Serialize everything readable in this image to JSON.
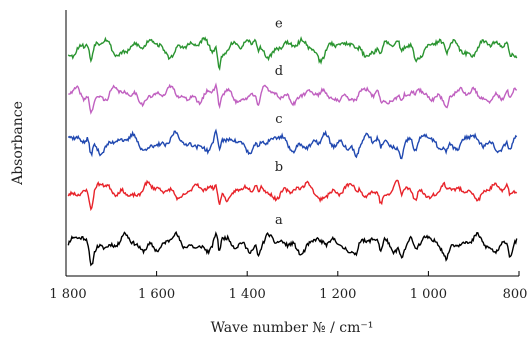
{
  "chart_data": {
    "type": "line",
    "title": "",
    "xlabel": "Wave number № / cm⁻¹",
    "ylabel": "Absorbance",
    "x_reversed": true,
    "xlim": [
      1800,
      800
    ],
    "x_ticks": [
      1800,
      1600,
      1400,
      1200,
      1000,
      800
    ],
    "x_tick_labels": [
      "1 800",
      "1 600",
      "1 400",
      "1 200",
      "1 000",
      "800"
    ],
    "ylim": [
      0,
      1
    ],
    "grid": false,
    "legend": "inline labels above each curve",
    "series": [
      {
        "name": "a",
        "color": "#000000",
        "offset": 0.12,
        "amp": 0.035,
        "seed": 11
      },
      {
        "name": "b",
        "color": "#e8232a",
        "offset": 0.32,
        "amp": 0.03,
        "seed": 23
      },
      {
        "name": "c",
        "color": "#2048b0",
        "offset": 0.5,
        "amp": 0.035,
        "seed": 37
      },
      {
        "name": "d",
        "color": "#c060c0",
        "offset": 0.68,
        "amp": 0.03,
        "seed": 41
      },
      {
        "name": "e",
        "color": "#2a9430",
        "offset": 0.86,
        "amp": 0.035,
        "seed": 53
      }
    ]
  }
}
